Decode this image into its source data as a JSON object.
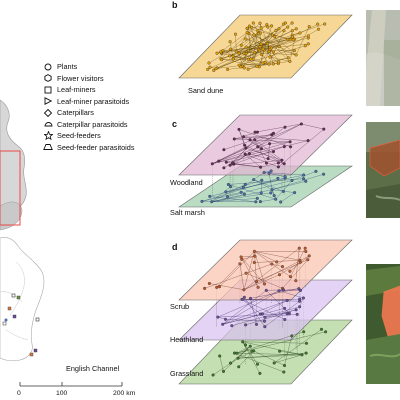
{
  "legend": {
    "items": [
      {
        "label": "Plants",
        "icon": "circle-icon"
      },
      {
        "label": "Flower visitors",
        "icon": "hexagon-icon"
      },
      {
        "label": "Leaf-miners",
        "icon": "square-icon"
      },
      {
        "label": "Leaf-miner parasitoids",
        "icon": "triangle-right-icon"
      },
      {
        "label": "Caterpillars",
        "icon": "diamond-icon"
      },
      {
        "label": "Caterpillar parasitoids",
        "icon": "semicircle-icon"
      },
      {
        "label": "Seed-feeders",
        "icon": "star-icon"
      },
      {
        "label": "Seed-feeder parasitoids",
        "icon": "trapezoid-icon"
      }
    ]
  },
  "map": {
    "sea_label": "English Channel",
    "scale": {
      "ticks": [
        "0",
        "100",
        "200 km"
      ]
    }
  },
  "panels": {
    "b": {
      "letter": "b",
      "layers": [
        "Sand dune"
      ]
    },
    "c": {
      "letter": "c",
      "layers": [
        "Woodland",
        "Salt marsh"
      ]
    },
    "d": {
      "letter": "d",
      "layers": [
        "Scrub",
        "Heathland",
        "Grassland"
      ]
    }
  },
  "colors": {
    "sand_dune": "#f7d795",
    "woodland": "#e1b5d2",
    "salt_marsh": "#b9dcc3",
    "scrub": "#f9c3b0",
    "heathland": "#d9c2f1",
    "grassland": "#c4dfb2",
    "highlight": "#e84a4a"
  }
}
